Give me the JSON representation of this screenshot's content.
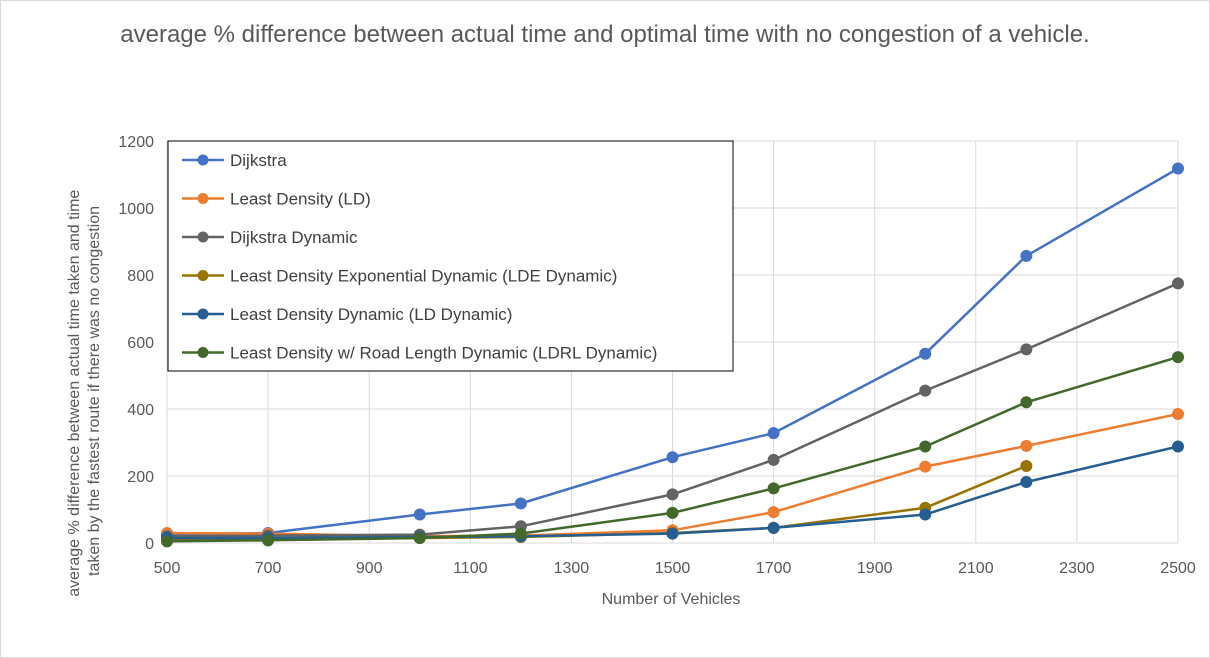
{
  "chart_data": {
    "type": "line",
    "title": "average % difference between actual time and optimal time with no congestion of a vehicle.",
    "xlabel": "Number of Vehicles",
    "ylabel": "average % difference  between actual time taken and time taken by the fastest route if there was no congestion",
    "xlim": [
      500,
      2500
    ],
    "ylim": [
      0,
      1200
    ],
    "x_ticks": [
      "500",
      "700",
      "900",
      "1100",
      "1300",
      "1500",
      "1700",
      "1900",
      "2100",
      "2300",
      "2500"
    ],
    "y_ticks": [
      "0",
      "200",
      "400",
      "600",
      "800",
      "1000",
      "1200"
    ],
    "grid": true,
    "legend_position": "top-left",
    "series": [
      {
        "name": "Dijkstra",
        "color": "#4472C4",
        "points": [
          [
            500,
            25
          ],
          [
            700,
            30
          ],
          [
            1000,
            85
          ],
          [
            1200,
            118
          ],
          [
            1500,
            256
          ],
          [
            1700,
            328
          ],
          [
            2000,
            565
          ],
          [
            2200,
            857
          ],
          [
            2500,
            1118
          ]
        ]
      },
      {
        "name": "Least Density (LD)",
        "color": "#ED7D31",
        "points": [
          [
            500,
            30
          ],
          [
            700,
            28
          ],
          [
            1000,
            20
          ],
          [
            1200,
            22
          ],
          [
            1500,
            38
          ],
          [
            1700,
            92
          ],
          [
            2000,
            228
          ],
          [
            2200,
            290
          ],
          [
            2500,
            385
          ]
        ]
      },
      {
        "name": "Dijkstra Dynamic",
        "color": "#636363",
        "points": [
          [
            500,
            20
          ],
          [
            700,
            22
          ],
          [
            1000,
            25
          ],
          [
            1200,
            50
          ],
          [
            1500,
            145
          ],
          [
            1700,
            248
          ],
          [
            2000,
            455
          ],
          [
            2200,
            578
          ],
          [
            2500,
            775
          ]
        ]
      },
      {
        "name": "Least Density Exponential Dynamic (LDE Dynamic)",
        "color": "#997300",
        "points": [
          [
            500,
            10
          ],
          [
            700,
            12
          ],
          [
            1000,
            15
          ],
          [
            1200,
            18
          ],
          [
            1500,
            30
          ],
          [
            1700,
            45
          ],
          [
            2000,
            105
          ],
          [
            2200,
            230
          ]
        ]
      },
      {
        "name": "Least Density Dynamic (LD Dynamic)",
        "color": "#255E91",
        "points": [
          [
            500,
            15
          ],
          [
            700,
            15
          ],
          [
            1000,
            18
          ],
          [
            1200,
            20
          ],
          [
            1500,
            28
          ],
          [
            1700,
            45
          ],
          [
            2000,
            85
          ],
          [
            2200,
            182
          ],
          [
            2500,
            288
          ]
        ]
      },
      {
        "name": "Least Density w/ Road Length Dynamic (LDRL Dynamic)",
        "color": "#43682B",
        "points": [
          [
            500,
            5
          ],
          [
            700,
            8
          ],
          [
            1000,
            15
          ],
          [
            1200,
            28
          ],
          [
            1500,
            90
          ],
          [
            1700,
            163
          ],
          [
            2000,
            288
          ],
          [
            2200,
            420
          ],
          [
            2500,
            555
          ]
        ]
      }
    ]
  }
}
